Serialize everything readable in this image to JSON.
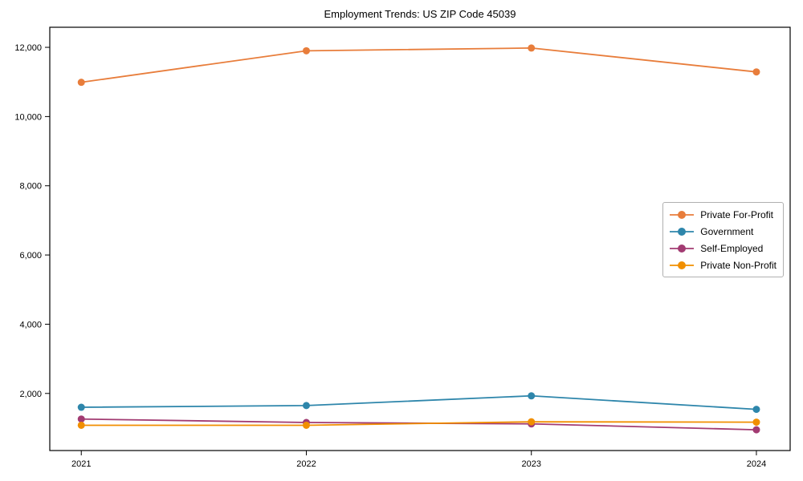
{
  "chart_data": {
    "type": "line",
    "title": "Employment Trends: US ZIP Code 45039",
    "xlabel": "",
    "ylabel": "",
    "x": [
      2021,
      2022,
      2023,
      2024
    ],
    "xtick_labels": [
      "2021",
      "2022",
      "2023",
      "2024"
    ],
    "yticks": [
      2000,
      4000,
      6000,
      8000,
      10000,
      12000
    ],
    "ytick_labels": [
      "2,000",
      "4,000",
      "6,000",
      "8,000",
      "10,000",
      "12,000"
    ],
    "xlim": [
      2020.86,
      2024.15
    ],
    "ylim": [
      350,
      12580
    ],
    "grid": false,
    "legend_position": "center right",
    "axis_color": "#000000",
    "background_color": "#ffffff",
    "series": [
      {
        "name": "Private For-Profit",
        "color": "#E87D3B",
        "values": [
          10990,
          11900,
          11980,
          11290
        ]
      },
      {
        "name": "Government",
        "color": "#2E86AB",
        "values": [
          1600,
          1650,
          1930,
          1540
        ]
      },
      {
        "name": "Self-Employed",
        "color": "#A23B72",
        "values": [
          1260,
          1160,
          1120,
          950
        ]
      },
      {
        "name": "Private Non-Profit",
        "color": "#F18F01",
        "values": [
          1080,
          1080,
          1180,
          1170
        ]
      }
    ]
  }
}
